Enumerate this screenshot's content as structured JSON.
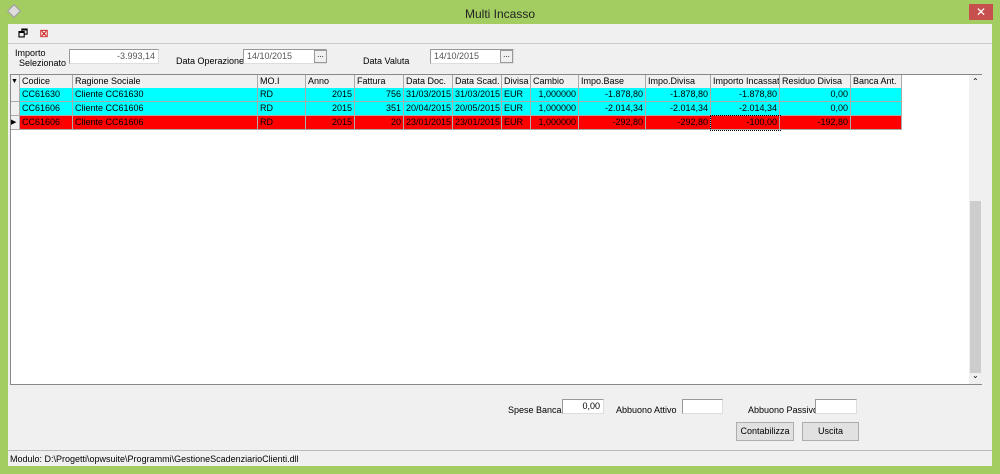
{
  "window": {
    "title": "Multi Incasso",
    "close_label": "✕"
  },
  "toolbar": {
    "items": [
      {
        "icon": "properties-icon",
        "glyph": "🗗"
      },
      {
        "icon": "cancel-grid-icon",
        "glyph": "⊠"
      }
    ]
  },
  "filters": {
    "importo_label_1": "Importo",
    "importo_label_2": "Selezionato",
    "importo_value": "-3.993,14",
    "data_operazione_label": "Data Operazione",
    "data_operazione_value": "14/10/2015",
    "data_valuta_label": "Data Valuta",
    "data_valuta_value": "14/10/2015",
    "picker_label": "..."
  },
  "grid": {
    "columns": [
      "Codice",
      "Ragione Sociale",
      "MO.I",
      "Anno",
      "Fattura",
      "Data Doc.",
      "Data Scad.",
      "Divisa",
      "Cambio",
      "Impo.Base",
      "Impo.Divisa",
      "Importo Incassato",
      "Residuo Divisa",
      "Banca Ant."
    ],
    "rows": [
      {
        "color": "#00ffff",
        "cells": [
          "CC61630",
          "Cliente CC61630",
          "RD",
          "2015",
          "756",
          "31/03/2015",
          "31/03/2015",
          "EUR",
          "1,000000",
          "-1.878,80",
          "-1.878,80",
          "-1.878,80",
          "0,00",
          ""
        ]
      },
      {
        "color": "#00ffff",
        "cells": [
          "CC61606",
          "Cliente CC61606",
          "RD",
          "2015",
          "351",
          "20/04/2015",
          "20/05/2015",
          "EUR",
          "1,000000",
          "-2.014,34",
          "-2.014,34",
          "-2.014,34",
          "0,00",
          ""
        ]
      },
      {
        "color": "#ff0000",
        "current": true,
        "cells": [
          "CC61606",
          "Cliente CC61606",
          "RD",
          "2015",
          "20",
          "23/01/2015",
          "23/01/2015",
          "EUR",
          "1,000000",
          "-292,80",
          "-292,80",
          "-100,00",
          "-192,80",
          ""
        ]
      }
    ]
  },
  "footer": {
    "spese_banca_label": "Spese Banca",
    "spese_banca_value": "0,00",
    "abbuono_attivo_label": "Abbuono Attivo",
    "abbuono_attivo_value": "",
    "abbuono_passivo_label": "Abbuono Passivo",
    "abbuono_passivo_value": "",
    "contabilizza_label": "Contabilizza",
    "uscita_label": "Uscita"
  },
  "status": {
    "text": "Modulo: D:\\Progetti\\opwsuite\\Programmi\\GestioneScadenziarioClienti.dll"
  }
}
